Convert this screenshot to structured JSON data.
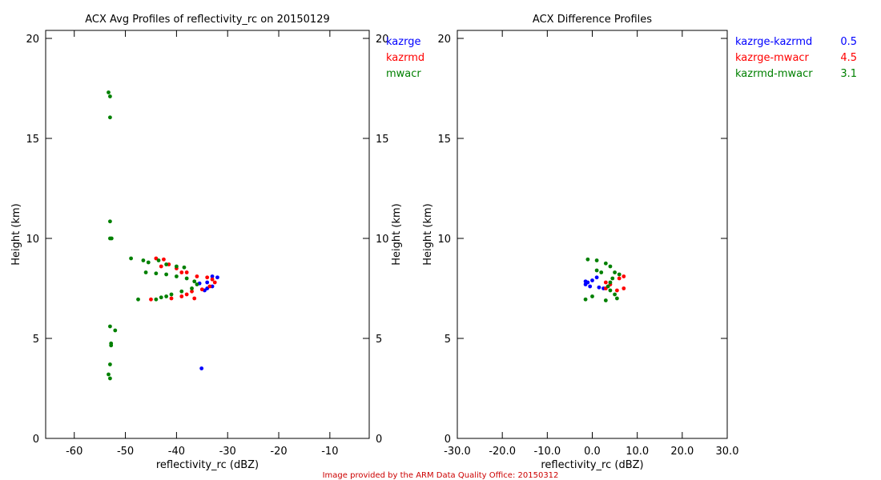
{
  "footer": "Image provided by the ARM Data Quality Office: 20150312",
  "colors": {
    "kazrge": "#0000ff",
    "kazrmd": "#ff0000",
    "mwacr": "#008000",
    "footer": "#cc0000"
  },
  "chart_data": [
    {
      "type": "scatter",
      "title": "ACX Avg Profiles of reflectivity_rc on 20150129",
      "xlabel": "reflectivity_rc (dBZ)",
      "ylabel": "Height (km)",
      "ylabel_right": "Height (km)",
      "xlim": [
        -65.6,
        -2.3
      ],
      "ylim": [
        0,
        20.4
      ],
      "xticks": [
        -60,
        -50,
        -40,
        -30,
        -20,
        -10
      ],
      "yticks": [
        0,
        5,
        10,
        15,
        20
      ],
      "legend": [
        "kazrge",
        "kazrmd",
        "mwacr"
      ],
      "legend_placement": "right-outside",
      "series": [
        {
          "name": "kazrge",
          "color": "#0000ff",
          "points": [
            [
              -33,
              8.1
            ],
            [
              -32,
              8.05
            ],
            [
              -34,
              7.8
            ],
            [
              -35.5,
              7.75
            ],
            [
              -34,
              7.5
            ],
            [
              -33,
              7.6
            ],
            [
              -34.5,
              7.4
            ],
            [
              -35.1,
              3.5
            ]
          ]
        },
        {
          "name": "kazrmd",
          "color": "#ff0000",
          "points": [
            [
              -44,
              9.0
            ],
            [
              -42.5,
              8.95
            ],
            [
              -41.5,
              8.7
            ],
            [
              -40,
              8.5
            ],
            [
              -38,
              8.3
            ],
            [
              -36,
              8.1
            ],
            [
              -34,
              8.05
            ],
            [
              -33,
              7.95
            ],
            [
              -32.5,
              7.8
            ],
            [
              -33.5,
              7.6
            ],
            [
              -35,
              7.45
            ],
            [
              -37,
              7.35
            ],
            [
              -38,
              7.2
            ],
            [
              -36.5,
              7.0
            ],
            [
              -45,
              6.95
            ],
            [
              -41,
              7.0
            ],
            [
              -39,
              7.1
            ],
            [
              -43,
              8.6
            ],
            [
              -39,
              8.3
            ]
          ]
        },
        {
          "name": "mwacr",
          "color": "#008000",
          "points": [
            [
              -53.3,
              17.3
            ],
            [
              -53,
              17.1
            ],
            [
              -53,
              16.05
            ],
            [
              -53,
              10.85
            ],
            [
              -53,
              10.0
            ],
            [
              -52.7,
              10.0
            ],
            [
              -53,
              5.6
            ],
            [
              -52,
              5.4
            ],
            [
              -52.8,
              4.75
            ],
            [
              -52.8,
              4.65
            ],
            [
              -53,
              3.7
            ],
            [
              -53.3,
              3.2
            ],
            [
              -53,
              3.0
            ],
            [
              -48.9,
              9.0
            ],
            [
              -46.5,
              8.9
            ],
            [
              -45.5,
              8.8
            ],
            [
              -43.5,
              8.9
            ],
            [
              -42,
              8.7
            ],
            [
              -40,
              8.6
            ],
            [
              -38.5,
              8.55
            ],
            [
              -46,
              8.3
            ],
            [
              -44,
              8.25
            ],
            [
              -42,
              8.2
            ],
            [
              -40,
              8.1
            ],
            [
              -38,
              8.0
            ],
            [
              -36.5,
              7.85
            ],
            [
              -36,
              7.7
            ],
            [
              -37,
              7.5
            ],
            [
              -39,
              7.35
            ],
            [
              -41,
              7.2
            ],
            [
              -42,
              7.1
            ],
            [
              -43,
              7.05
            ],
            [
              -47.5,
              6.95
            ],
            [
              -44,
              6.95
            ]
          ]
        }
      ]
    },
    {
      "type": "scatter",
      "title": "ACX Difference Profiles",
      "xlabel": "reflectivity_rc (dBZ)",
      "ylabel": "Height (km)",
      "xlim": [
        -30,
        30
      ],
      "ylim": [
        0,
        20.4
      ],
      "xticks": [
        "-30.0",
        "-20.0",
        "-10.0",
        "0.0",
        "10.0",
        "20.0",
        "30.0"
      ],
      "yticks": [
        0,
        5,
        10,
        15,
        20
      ],
      "legend_placement": "right-outside",
      "series": [
        {
          "name": "kazrge-kazrmd",
          "value": "0.5",
          "color": "#0000ff",
          "points": [
            [
              -1.5,
              7.7
            ],
            [
              -1,
              7.8
            ],
            [
              0,
              7.9
            ],
            [
              1,
              8.05
            ],
            [
              -0.5,
              7.6
            ],
            [
              1.5,
              7.55
            ],
            [
              2.5,
              7.5
            ],
            [
              -1.5,
              7.85
            ]
          ]
        },
        {
          "name": "kazrge-mwacr",
          "value": "4.5",
          "color": "#ff0000",
          "points": [
            [
              3,
              7.8
            ],
            [
              4,
              7.7
            ],
            [
              6,
              8.0
            ],
            [
              7,
              8.1
            ],
            [
              5.5,
              7.4
            ],
            [
              7,
              7.5
            ],
            [
              3,
              7.5
            ]
          ]
        },
        {
          "name": "kazrmd-mwacr",
          "value": "3.1",
          "color": "#008000",
          "points": [
            [
              -1,
              8.95
            ],
            [
              1,
              8.9
            ],
            [
              3,
              8.75
            ],
            [
              4,
              8.6
            ],
            [
              5,
              8.3
            ],
            [
              6,
              8.2
            ],
            [
              4.5,
              8.0
            ],
            [
              4,
              7.8
            ],
            [
              3.5,
              7.6
            ],
            [
              4,
              7.4
            ],
            [
              5,
              7.2
            ],
            [
              5.5,
              7.0
            ],
            [
              0,
              7.1
            ],
            [
              -1.5,
              6.95
            ],
            [
              3,
              6.9
            ],
            [
              2,
              8.3
            ],
            [
              1,
              8.4
            ]
          ]
        }
      ]
    }
  ]
}
